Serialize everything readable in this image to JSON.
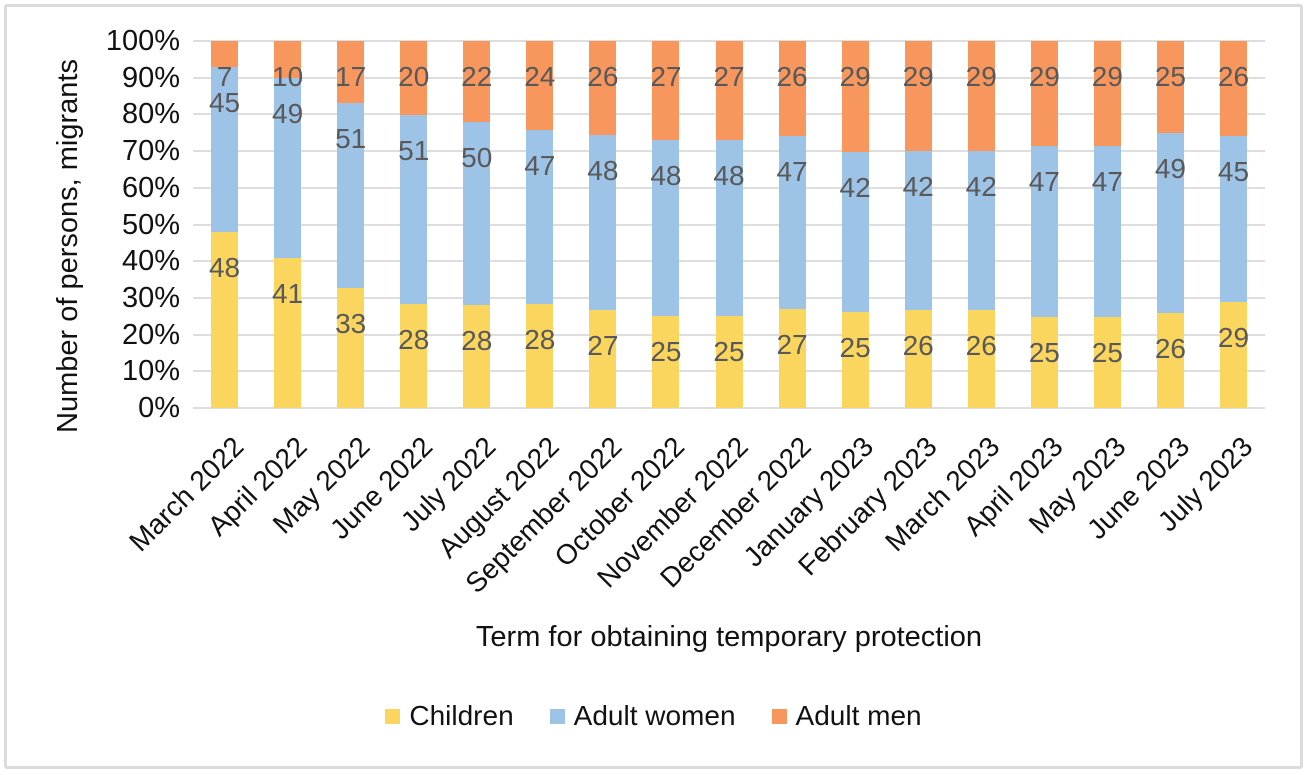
{
  "figure": {
    "background": "#FFFFFF",
    "border_color": "#DBDBDB"
  },
  "chart_data": {
    "type": "bar",
    "subtype": "stacked-100-percent-column",
    "title": "",
    "xlabel": "Term for obtaining temporary protection",
    "ylabel": "Number of persons, migrants",
    "categories": [
      "March 2022",
      "April 2022",
      "May 2022",
      "June 2022",
      "July 2022",
      "August 2022",
      "September 2022",
      "October 2022",
      "November 2022",
      "December 2022",
      "January 2023",
      "February 2023",
      "March 2023",
      "April 2023",
      "May 2023",
      "June 2023",
      "July 2023"
    ],
    "series": [
      {
        "name": "Children",
        "color": "#FAD65F",
        "values": [
          48,
          41,
          33,
          28,
          28,
          28,
          27,
          25,
          25,
          27,
          25,
          26,
          26,
          25,
          25,
          26,
          29
        ]
      },
      {
        "name": "Adult women",
        "color": "#9DC3E6",
        "values": [
          45,
          49,
          51,
          51,
          50,
          47,
          48,
          48,
          48,
          47,
          42,
          42,
          42,
          47,
          47,
          49,
          45
        ]
      },
      {
        "name": "Adult men",
        "color": "#F7975E",
        "values": [
          7,
          10,
          17,
          20,
          22,
          24,
          26,
          27,
          27,
          26,
          29,
          29,
          29,
          29,
          29,
          25,
          26
        ]
      }
    ],
    "y_ticks": [
      "0%",
      "10%",
      "20%",
      "30%",
      "40%",
      "50%",
      "60%",
      "70%",
      "80%",
      "90%",
      "100%"
    ],
    "ylim": [
      0,
      100
    ],
    "grid": true,
    "gridline_color": "#DEDEDE",
    "data_label_color": "#595959",
    "legend_position": "bottom"
  }
}
